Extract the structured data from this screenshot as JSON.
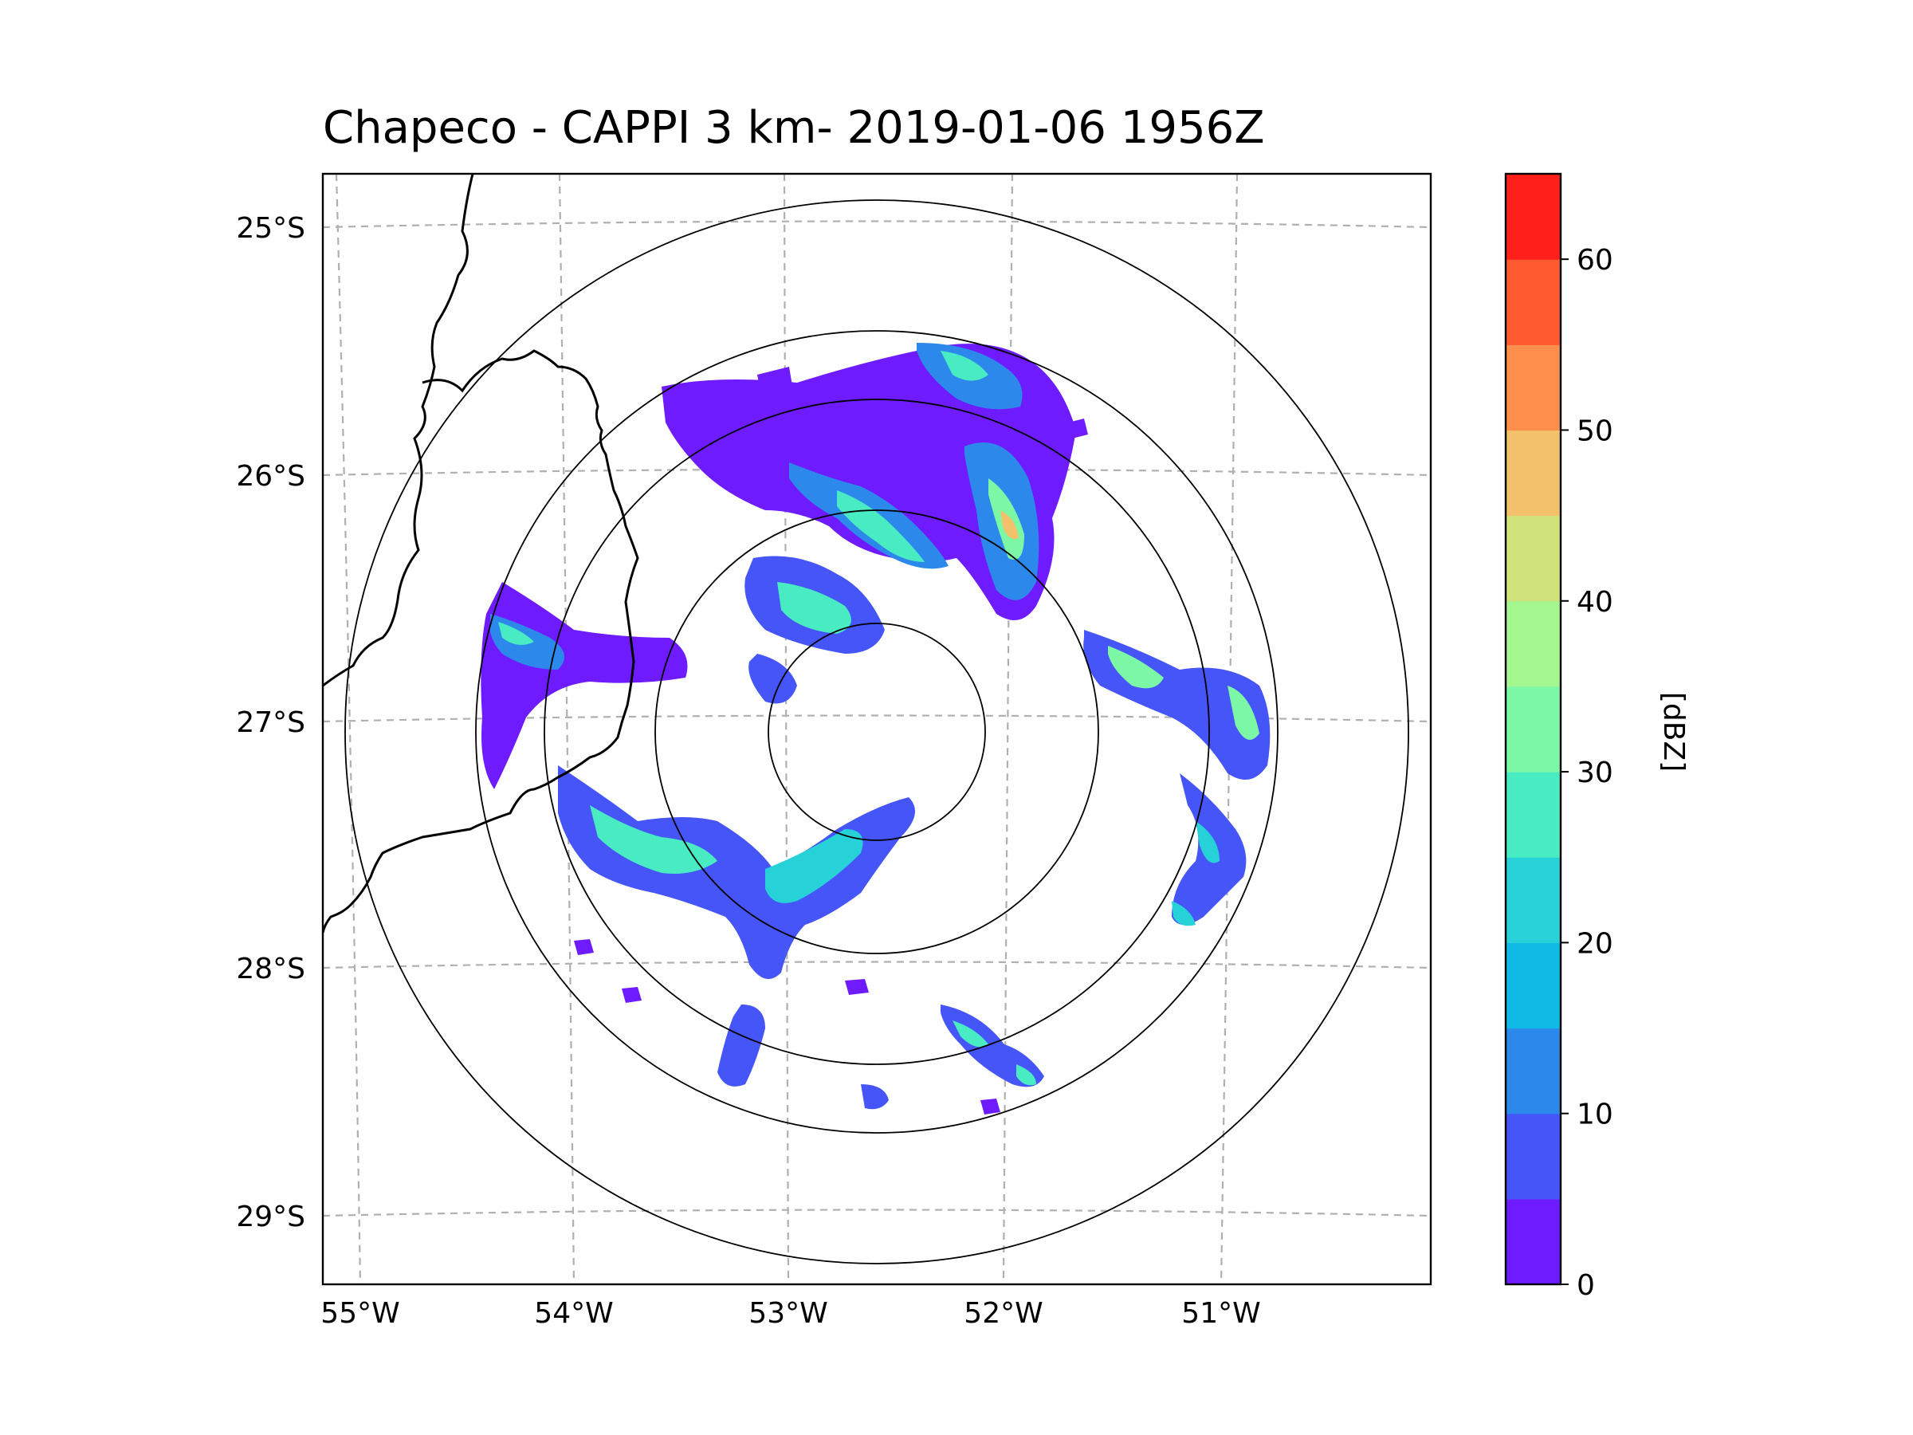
{
  "chart_data": {
    "type": "heatmap",
    "title": "Chapeco - CAPPI 3 km- 2019-01-06 1956Z",
    "radar_site": {
      "lon": -52.6,
      "lat": -27.0
    },
    "x_ticks": [
      "55°W",
      "54°W",
      "53°W",
      "52°W",
      "51°W"
    ],
    "x_tick_values": [
      -55,
      -54,
      -53,
      -52,
      -51
    ],
    "y_ticks": [
      "25°S",
      "26°S",
      "27°S",
      "28°S",
      "29°S"
    ],
    "y_tick_values": [
      -25,
      -26,
      -27,
      -28,
      -29
    ],
    "xlim": [
      -55.2,
      -50.1
    ],
    "ylim": [
      -29.3,
      -24.8
    ],
    "grid": true,
    "range_rings_count": 5,
    "colorbar": {
      "label": "[dBZ]",
      "ticks": [
        "0",
        "10",
        "20",
        "30",
        "40",
        "50",
        "60"
      ],
      "tick_values": [
        0,
        10,
        20,
        30,
        40,
        50,
        60
      ],
      "range": [
        0,
        65
      ],
      "levels": [
        {
          "from": 0,
          "to": 5,
          "color": "#6e1bff"
        },
        {
          "from": 5,
          "to": 10,
          "color": "#4555f7"
        },
        {
          "from": 10,
          "to": 15,
          "color": "#2c89eb"
        },
        {
          "from": 15,
          "to": 20,
          "color": "#0fbbe4"
        },
        {
          "from": 20,
          "to": 25,
          "color": "#26d2d8"
        },
        {
          "from": 25,
          "to": 30,
          "color": "#48ebc2"
        },
        {
          "from": 30,
          "to": 35,
          "color": "#7cf7a6"
        },
        {
          "from": 35,
          "to": 40,
          "color": "#a3f78e"
        },
        {
          "from": 40,
          "to": 45,
          "color": "#cfe27c"
        },
        {
          "from": 45,
          "to": 50,
          "color": "#f3c06c"
        },
        {
          "from": 50,
          "to": 55,
          "color": "#ff8f4c"
        },
        {
          "from": 55,
          "to": 60,
          "color": "#ff5a30"
        },
        {
          "from": 60,
          "to": 65,
          "color": "#ff2119"
        }
      ]
    },
    "echo_regions": [
      {
        "name": "northern band",
        "max_dbz": 50
      },
      {
        "name": "western band",
        "max_dbz": 30
      },
      {
        "name": "southwestern arc",
        "max_dbz": 30
      },
      {
        "name": "eastern edge",
        "max_dbz": 35
      },
      {
        "name": "southeastern cells",
        "max_dbz": 35
      }
    ]
  }
}
